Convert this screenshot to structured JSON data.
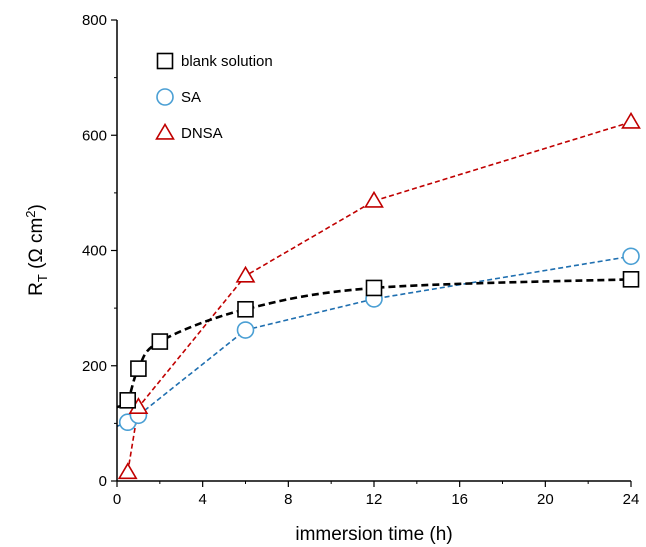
{
  "chart_data": {
    "type": "scatter",
    "xlabel": "immersion time (h)",
    "ylabel_main": "R",
    "ylabel_sub": "T",
    "ylabel_unit": " (Ω cm",
    "ylabel_sup": "2",
    "ylabel_close": ")",
    "xlim": [
      0,
      24
    ],
    "ylim": [
      0,
      800
    ],
    "xticks": [
      0,
      4,
      8,
      12,
      16,
      20,
      24
    ],
    "yticks": [
      0,
      200,
      400,
      600,
      800
    ],
    "grid": false,
    "legend_position": "top-left",
    "series": [
      {
        "name": "blank solution",
        "marker": "square",
        "color": "#000000",
        "line": "smooth-dashed",
        "x": [
          0.5,
          1,
          2,
          6,
          12,
          24
        ],
        "y": [
          140,
          195,
          242,
          298,
          335,
          350
        ],
        "fit_start": [
          0,
          128
        ]
      },
      {
        "name": "SA",
        "marker": "circle",
        "color": "#4a9fd4",
        "line_color": "#1f6fb0",
        "line": "dashed",
        "x": [
          0.5,
          1,
          6,
          12,
          24
        ],
        "y": [
          102,
          114,
          262,
          316,
          390
        ],
        "line_start": [
          0,
          95
        ]
      },
      {
        "name": "DNSA",
        "marker": "triangle",
        "color": "#c00000",
        "line": "dashed",
        "x": [
          0.5,
          1,
          6,
          12,
          24
        ],
        "y": [
          15,
          128,
          356,
          486,
          623
        ]
      }
    ]
  }
}
